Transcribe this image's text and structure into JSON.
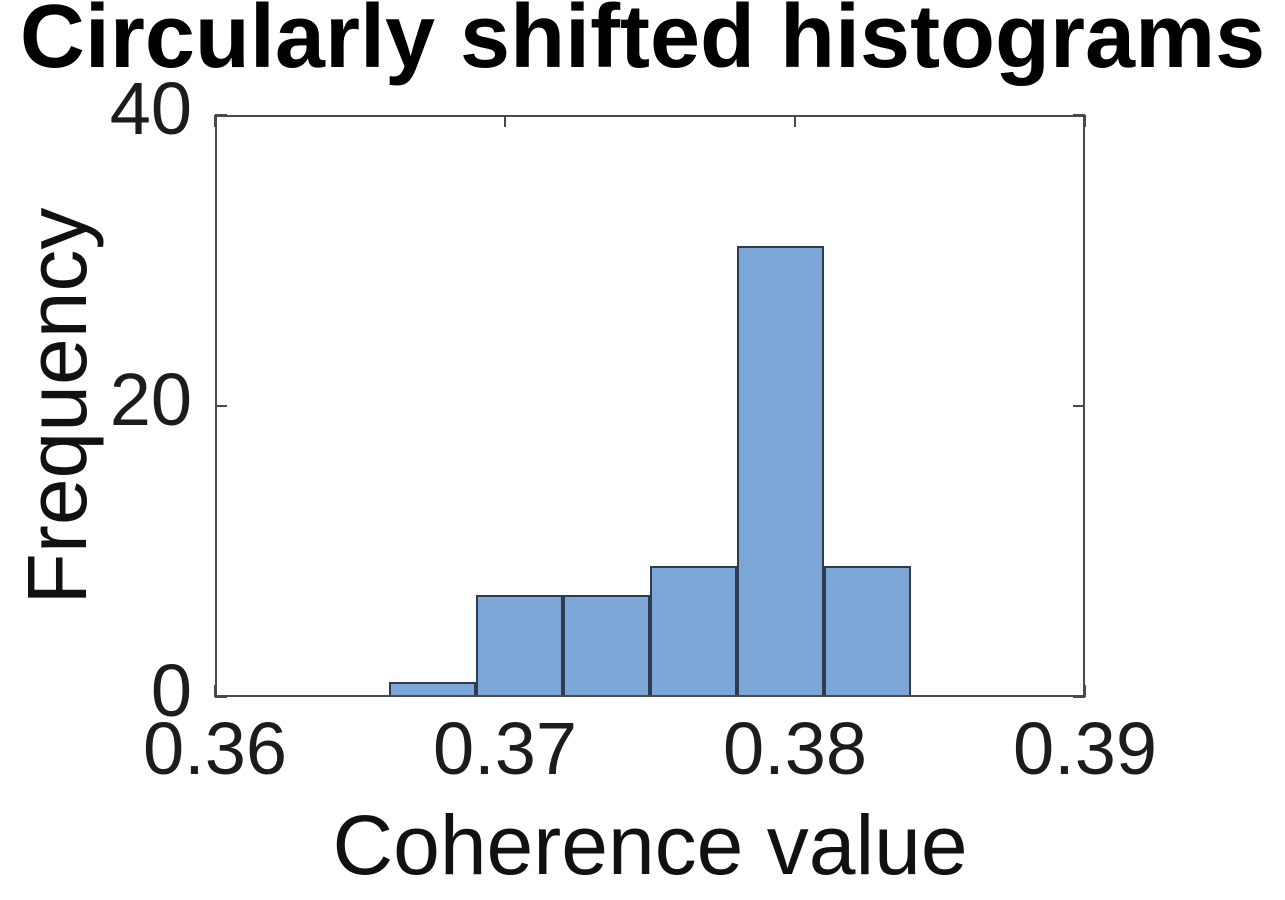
{
  "figure": {
    "background": "#ffffff"
  },
  "chart_data": {
    "type": "bar",
    "chart_kind": "histogram",
    "title": "Circularly shifted histograms",
    "xlabel": "Coherence value",
    "ylabel": "Frequency",
    "bin_edges": [
      0.366,
      0.369,
      0.372,
      0.375,
      0.378,
      0.381,
      0.384
    ],
    "counts": [
      1,
      7,
      7,
      9,
      31,
      9
    ],
    "xlim": [
      0.36,
      0.39
    ],
    "ylim": [
      0,
      40
    ],
    "xticks": [
      0.36,
      0.37,
      0.38,
      0.39
    ],
    "xtick_labels": [
      "0.36",
      "0.37",
      "0.38",
      "0.39"
    ],
    "yticks": [
      0,
      20,
      40
    ],
    "ytick_labels": [
      "0",
      "20",
      "40"
    ],
    "grid": false,
    "legend": null,
    "tick_direction": "in",
    "colors": {
      "bar_fill": "#7CA6D6",
      "bar_edge": "#2E3C52",
      "axis": "#4A4A4A",
      "tick_text": "#1C1C1C",
      "label_text": "#111111",
      "title_text": "#000000"
    }
  }
}
